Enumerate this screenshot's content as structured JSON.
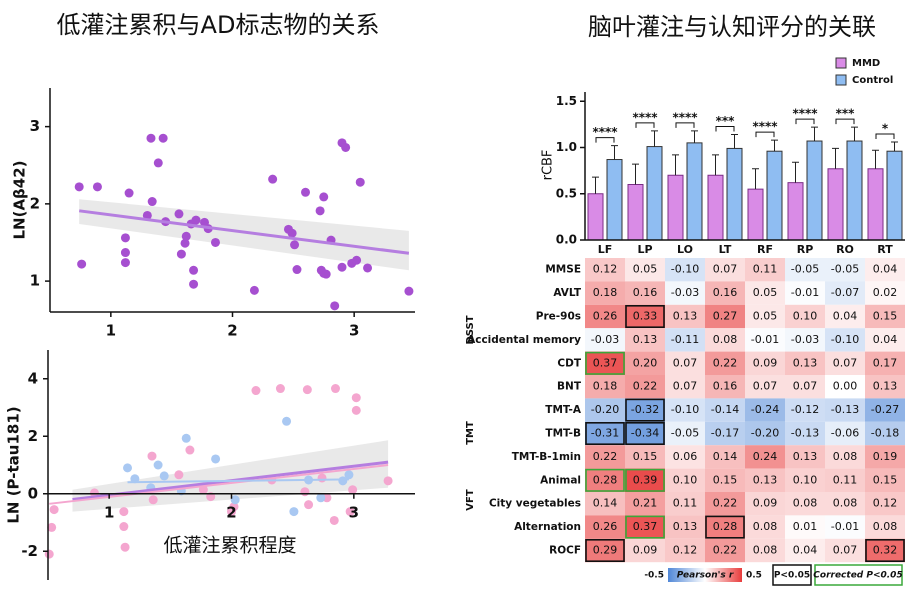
{
  "chart_data": [
    {
      "type": "scatter",
      "title": "低灌注累积与AD标志物的关系",
      "ylabel": "LN(Aβ42)",
      "xlim": [
        0.5,
        3.5
      ],
      "ylim": [
        0.6,
        3.5
      ],
      "xticks": [
        1,
        2,
        3
      ],
      "yticks": [
        1,
        2,
        3
      ],
      "groups": [
        {
          "color": "#a64fd0",
          "x": [
            0.74,
            0.89,
            0.76,
            1.15,
            1.12,
            1.12,
            1.12,
            1.33,
            1.43,
            1.39,
            1.34,
            1.3,
            1.45,
            1.56,
            1.58,
            1.61,
            1.62,
            1.66,
            1.7,
            1.68,
            1.68,
            1.77,
            1.8,
            1.86,
            2.18,
            2.33,
            2.46,
            2.49,
            2.51,
            2.53,
            2.6,
            2.72,
            2.73,
            2.75,
            2.75,
            2.77,
            2.81,
            2.84,
            2.9,
            2.93,
            2.9,
            2.98,
            3.02,
            3.05,
            3.11,
            3.45
          ],
          "y": [
            2.22,
            2.22,
            1.22,
            2.14,
            1.56,
            1.37,
            1.24,
            2.85,
            2.85,
            2.53,
            2.03,
            1.85,
            1.77,
            1.87,
            1.35,
            1.49,
            1.58,
            1.74,
            1.79,
            1.14,
            0.96,
            1.76,
            1.68,
            1.5,
            0.88,
            2.32,
            1.67,
            1.62,
            1.47,
            1.15,
            2.15,
            1.91,
            1.14,
            2.09,
            1.1,
            1.09,
            1.53,
            0.68,
            2.79,
            2.73,
            1.18,
            1.23,
            1.27,
            2.28,
            1.17,
            0.87
          ]
        }
      ],
      "fits": [
        {
          "color": "#b57ee0",
          "x": [
            0.74,
            3.45
          ],
          "y": [
            1.91,
            1.36
          ],
          "lower": [
            1.74,
            1.14
          ],
          "upper": [
            2.06,
            1.65
          ]
        }
      ]
    },
    {
      "type": "scatter",
      "ylabel": "LN (P-tau181)",
      "xlabel": "低灌注累积程度",
      "xlim": [
        0.5,
        3.5
      ],
      "ylim": [
        -3,
        5
      ],
      "xticks": [
        1,
        2,
        3
      ],
      "yticks": [
        -2,
        0,
        2,
        4
      ],
      "groups": [
        {
          "color": "#f4a6cf",
          "x": [
            0.55,
            0.53,
            0.51,
            0.88,
            1.12,
            1.12,
            1.13,
            1.35,
            1.36,
            1.57,
            1.66,
            1.77,
            1.83,
            2.0,
            2.02,
            2.2,
            2.33,
            2.4,
            2.62,
            2.85,
            2.63,
            2.6,
            2.74,
            2.78,
            2.84,
            2.97,
            2.99,
            3.02,
            3.02,
            3.28
          ],
          "y": [
            -0.55,
            -1.17,
            -2.1,
            0.03,
            -0.62,
            -1.14,
            -1.86,
            1.31,
            -0.21,
            0.66,
            1.52,
            0.14,
            -0.1,
            -0.62,
            -0.45,
            3.59,
            0.48,
            3.66,
            3.62,
            3.66,
            -0.38,
            0.07,
            0.55,
            -0.14,
            -0.93,
            -0.62,
            0.14,
            3.34,
            2.9,
            0.45
          ]
        },
        {
          "color": "#a9c8f2",
          "x": [
            1.15,
            1.21,
            1.34,
            1.4,
            1.45,
            1.59,
            1.63,
            1.87,
            2.03,
            2.45,
            2.51,
            2.63,
            2.73,
            2.91,
            2.96
          ],
          "y": [
            0.9,
            0.52,
            0.21,
            1.0,
            0.62,
            0.1,
            1.93,
            1.21,
            -0.21,
            2.52,
            -0.62,
            0.48,
            -0.14,
            0.45,
            0.66
          ]
        }
      ],
      "fits": [
        {
          "color": "#b57ee0",
          "x": [
            0.7,
            3.28
          ],
          "y": [
            -0.2,
            1.1
          ],
          "lower": [
            -0.62,
            0.21
          ],
          "upper": [
            0.14,
            1.86
          ]
        },
        {
          "color": "#f4a6cf",
          "x": [
            0.51,
            3.28
          ],
          "y": [
            -0.35,
            1.0
          ]
        },
        {
          "color": "#a9c8f2",
          "x": [
            1.15,
            2.96
          ],
          "y": [
            0.4,
            0.5
          ]
        }
      ]
    },
    {
      "type": "bar",
      "title": "脑叶灌注与认知评分的关联",
      "ylabel": "rCBF",
      "categories": [
        "LF",
        "LP",
        "LO",
        "LT",
        "RF",
        "RP",
        "RO",
        "RT"
      ],
      "ylim": [
        0,
        1.6
      ],
      "yticks": [
        {
          "value": 0,
          "label": "0.0"
        },
        0.5,
        {
          "value": 1,
          "label": "1.0"
        },
        1.5
      ],
      "series": [
        {
          "name": "MMD",
          "color": "#d98be6",
          "values": [
            0.5,
            0.6,
            0.7,
            0.7,
            0.55,
            0.62,
            0.77,
            0.77
          ],
          "errors": [
            0.18,
            0.22,
            0.22,
            0.22,
            0.22,
            0.22,
            0.22,
            0.2
          ]
        },
        {
          "name": "Control",
          "color": "#8fbdf2",
          "values": [
            0.87,
            1.01,
            1.05,
            0.99,
            0.96,
            1.07,
            1.07,
            0.96
          ],
          "errors": [
            0.15,
            0.17,
            0.13,
            0.15,
            0.12,
            0.15,
            0.15,
            0.1
          ]
        }
      ],
      "annotations": [
        "****",
        "****",
        "****",
        "***",
        "****",
        "****",
        "***",
        "*"
      ],
      "legend": "top-right"
    },
    {
      "type": "heatmap",
      "rows": [
        "MMSE",
        "AVLT",
        "Pre-90s",
        "Accidental memory",
        "CDT",
        "BNT",
        "TMT-A",
        "TMT-B",
        "TMT-B-1min",
        "Animal",
        "City vegetables",
        "Alternation",
        "ROCF"
      ],
      "row_groups": [
        "DSST",
        "TMT",
        "VFT"
      ],
      "values": [
        [
          0.12,
          0.05,
          -0.1,
          0.07,
          0.11,
          -0.05,
          -0.05,
          0.04
        ],
        [
          0.18,
          0.16,
          -0.03,
          0.16,
          0.05,
          -0.01,
          -0.07,
          0.02
        ],
        [
          0.26,
          0.33,
          0.13,
          0.27,
          0.05,
          0.1,
          0.04,
          0.15
        ],
        [
          -0.03,
          0.13,
          -0.11,
          0.08,
          -0.01,
          -0.03,
          -0.1,
          0.04
        ],
        [
          0.37,
          0.2,
          0.07,
          0.22,
          0.09,
          0.13,
          0.07,
          0.17
        ],
        [
          0.18,
          0.22,
          0.07,
          0.16,
          0.07,
          0.07,
          0.0,
          0.13
        ],
        [
          -0.2,
          -0.32,
          -0.1,
          -0.14,
          -0.24,
          -0.12,
          -0.13,
          -0.27
        ],
        [
          -0.31,
          -0.34,
          -0.05,
          -0.17,
          -0.2,
          -0.13,
          -0.06,
          -0.18
        ],
        [
          0.22,
          0.15,
          0.06,
          0.14,
          0.24,
          0.13,
          0.08,
          0.19
        ],
        [
          0.28,
          0.39,
          0.1,
          0.15,
          0.13,
          0.1,
          0.11,
          0.15
        ],
        [
          0.14,
          0.21,
          0.11,
          0.22,
          0.09,
          0.08,
          0.08,
          0.12
        ],
        [
          0.26,
          0.37,
          0.13,
          0.28,
          0.08,
          0.01,
          -0.01,
          0.08
        ],
        [
          0.29,
          0.09,
          0.12,
          0.22,
          0.08,
          0.04,
          0.07,
          0.32
        ]
      ],
      "value_labels": [
        [
          "0.12",
          "0.05",
          "-0.10",
          "0.07",
          "0.11",
          "-0.05",
          "-0.05",
          "0.04"
        ],
        [
          "0.18",
          "0.16",
          "-0.03",
          "0.16",
          "0.05",
          "-0.01",
          "-0.07",
          "0.02"
        ],
        [
          "0.26",
          "0.33",
          "0.13",
          "0.27",
          "0.05",
          "0.10",
          "0.04",
          "0.15"
        ],
        [
          "-0.03",
          "0.13",
          "-0.11",
          "0.08",
          "-0.01",
          "-0.03",
          "-0.10",
          "0.04"
        ],
        [
          "0.37",
          "0.20",
          "0.07",
          "0.22",
          "0.09",
          "0.13",
          "0.07",
          "0.17"
        ],
        [
          "0.18",
          "0.22",
          "0.07",
          "0.16",
          "0.07",
          "0.07",
          "0.00",
          "0.13"
        ],
        [
          "-0.20",
          "-0.32",
          "-0.10",
          "-0.14",
          "-0.24",
          "-0.12",
          "-0.13",
          "-0.27"
        ],
        [
          "-0.31",
          "-0.34",
          "-0.05",
          "-0.17",
          "-0.20",
          "-0.13",
          "-0.06",
          "-0.18"
        ],
        [
          "0.22",
          "0.15",
          "0.06",
          "0.14",
          "0.24",
          "0.13",
          "0.08",
          "0.19"
        ],
        [
          "0.28",
          "0.39",
          "0.10",
          "0.15",
          "0.13",
          "0.10",
          "0.11",
          "0.15"
        ],
        [
          "0.14",
          "0.21",
          "0.11",
          "0.22",
          "0.09",
          "0.08",
          "0.08",
          "0.12"
        ],
        [
          "0.26",
          "0.37",
          "0.13",
          "0.28",
          "0.08",
          "0.01",
          "-0.01",
          "0.08"
        ],
        [
          "0.29",
          "0.09",
          "0.12",
          "0.22",
          "0.08",
          "0.04",
          "0.07",
          "0.32"
        ]
      ],
      "significant": [
        [
          2,
          1
        ],
        [
          6,
          1
        ],
        [
          7,
          0
        ],
        [
          7,
          1
        ],
        [
          11,
          3
        ],
        [
          12,
          0
        ],
        [
          12,
          7
        ]
      ],
      "corrected": [
        [
          4,
          0
        ],
        [
          9,
          0
        ],
        [
          9,
          1
        ],
        [
          11,
          1
        ]
      ],
      "clim": [
        -0.5,
        0.5
      ],
      "colorbar_label": "Pearson's r",
      "legend_labels": [
        "P<0.05",
        "Corrected P<0.05"
      ]
    }
  ]
}
